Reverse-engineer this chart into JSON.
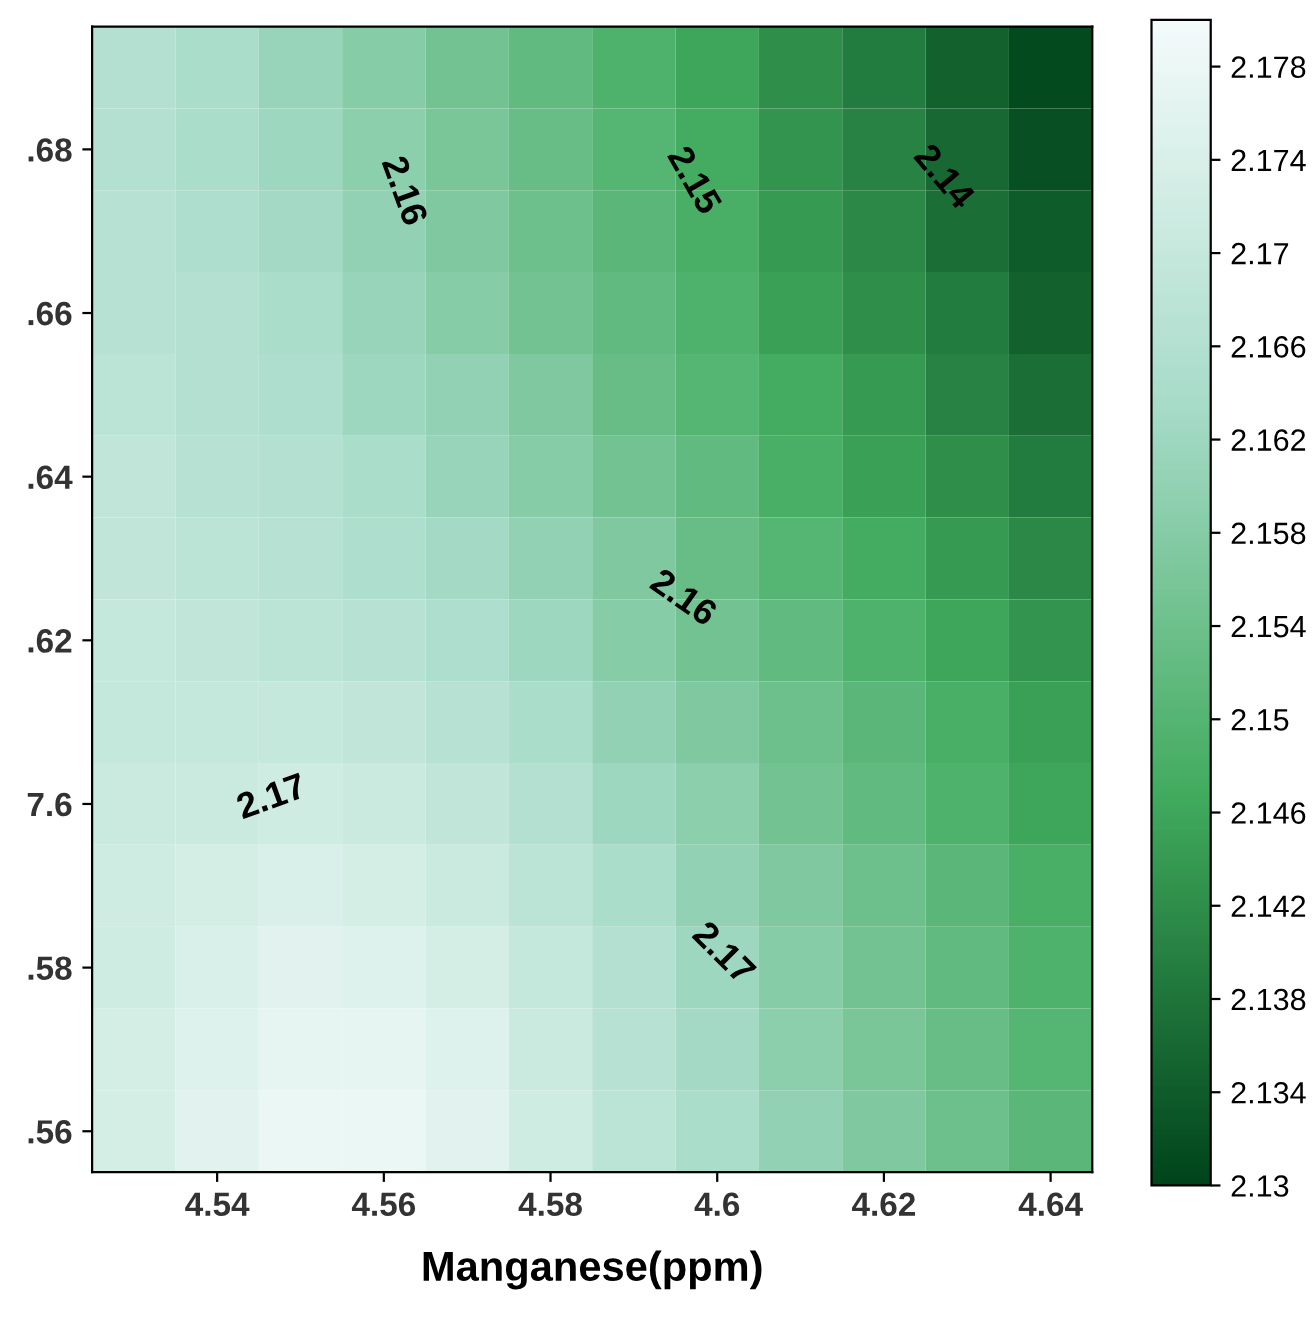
{
  "chart_data": {
    "type": "heatmap",
    "xlabel": "Manganese(ppm)",
    "categories": [
      null,
      "4.54",
      null,
      "4.56",
      null,
      "4.58",
      null,
      "4.6",
      null,
      "4.62",
      null,
      "4.64"
    ],
    "y_categories": [
      null,
      ".68",
      null,
      ".66",
      null,
      ".64",
      null,
      ".62",
      null,
      "7.6",
      null,
      ".58",
      null,
      ".56"
    ],
    "cells": [
      [
        2.166,
        2.164,
        2.161,
        2.158,
        2.155,
        2.152,
        2.149,
        2.146,
        2.142,
        2.139,
        2.135,
        2.131
      ],
      [
        2.166,
        2.164,
        2.162,
        2.159,
        2.156,
        2.153,
        2.15,
        2.147,
        2.143,
        2.14,
        2.136,
        2.132
      ],
      [
        2.167,
        2.165,
        2.163,
        2.16,
        2.157,
        2.154,
        2.151,
        2.148,
        2.144,
        2.141,
        2.137,
        2.134
      ],
      [
        2.167,
        2.166,
        2.164,
        2.161,
        2.158,
        2.155,
        2.152,
        2.149,
        2.145,
        2.142,
        2.139,
        2.135
      ],
      [
        2.168,
        2.166,
        2.165,
        2.162,
        2.16,
        2.157,
        2.153,
        2.15,
        2.147,
        2.144,
        2.14,
        2.137
      ],
      [
        2.169,
        2.167,
        2.166,
        2.164,
        2.161,
        2.158,
        2.155,
        2.152,
        2.148,
        2.145,
        2.142,
        2.139
      ],
      [
        2.169,
        2.168,
        2.167,
        2.165,
        2.163,
        2.16,
        2.157,
        2.153,
        2.15,
        2.147,
        2.144,
        2.141
      ],
      [
        2.17,
        2.169,
        2.168,
        2.167,
        2.165,
        2.162,
        2.158,
        2.155,
        2.152,
        2.149,
        2.146,
        2.143
      ],
      [
        2.17,
        2.17,
        2.17,
        2.169,
        2.167,
        2.164,
        2.16,
        2.157,
        2.154,
        2.151,
        2.148,
        2.145
      ],
      [
        2.171,
        2.171,
        2.172,
        2.171,
        2.169,
        2.166,
        2.162,
        2.159,
        2.155,
        2.152,
        2.149,
        2.146
      ],
      [
        2.172,
        2.173,
        2.174,
        2.173,
        2.171,
        2.168,
        2.164,
        2.16,
        2.157,
        2.154,
        2.151,
        2.148
      ],
      [
        2.172,
        2.174,
        2.176,
        2.175,
        2.173,
        2.17,
        2.166,
        2.162,
        2.158,
        2.155,
        2.152,
        2.149
      ],
      [
        2.173,
        2.175,
        2.177,
        2.177,
        2.175,
        2.171,
        2.167,
        2.163,
        2.159,
        2.156,
        2.153,
        2.15
      ],
      [
        2.173,
        2.176,
        2.178,
        2.178,
        2.176,
        2.172,
        2.168,
        2.164,
        2.16,
        2.157,
        2.154,
        2.151
      ]
    ],
    "colors": [
      "#00441b",
      "#41ab5d",
      "#a6dbc8",
      "#f4fbfb"
    ],
    "clim": [
      2.13,
      2.18
    ],
    "cticks": [
      2.13,
      2.134,
      2.138,
      2.142,
      2.146,
      2.15,
      2.154,
      2.158,
      2.162,
      2.166,
      2.17,
      2.174,
      2.178
    ],
    "annotations": [
      "2.16",
      "2.15",
      "2.14",
      "2.16",
      "2.17",
      "2.17"
    ]
  }
}
